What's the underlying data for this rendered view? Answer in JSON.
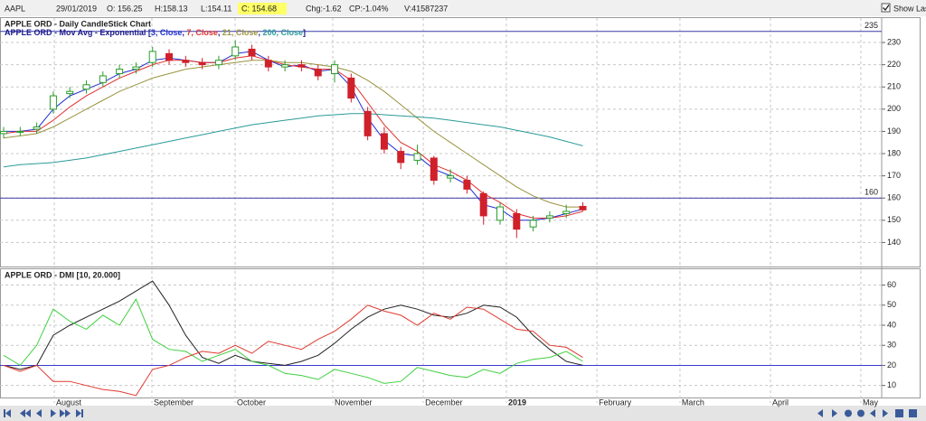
{
  "toolbar": {
    "symbol": "AAPL",
    "date": "29/01/2019",
    "open": "O: 156.25",
    "high": "H:158.13",
    "low": "L:154.11",
    "close": "C: 154.68",
    "change": "Chg:-1.62",
    "change_pct": "CP:-1.04%",
    "volume": "V:41587237",
    "show_last": "Show Last"
  },
  "chart_data": [
    {
      "type": "candlestick",
      "title": "APPLE ORD - Daily CandleStick Chart",
      "legend": {
        "prefix": "APPLE ORD - Mov Avg - Exponential [",
        "separator": ", ",
        "suffix": "]"
      },
      "x": [
        0,
        1,
        2,
        3,
        4,
        5,
        6,
        7,
        8,
        9,
        10,
        11,
        12,
        13,
        14,
        15,
        16,
        17,
        18,
        19,
        20,
        21,
        22,
        23,
        24,
        25,
        26,
        27,
        28,
        29,
        30,
        31,
        32,
        33,
        34,
        35
      ],
      "open": [
        189,
        190,
        191,
        200,
        207,
        209,
        212,
        216,
        218,
        221,
        225,
        222,
        221,
        220,
        224,
        227,
        222,
        219,
        220,
        218,
        216,
        214,
        199,
        189,
        181,
        177,
        178,
        169,
        168,
        162,
        150,
        153,
        147,
        151,
        153,
        156.25
      ],
      "high": [
        192,
        192,
        194,
        208,
        210,
        213,
        217,
        220,
        221,
        228,
        227,
        224,
        223,
        224,
        231,
        229,
        224,
        222,
        222,
        220,
        222,
        216,
        201,
        192,
        183,
        184,
        179,
        173,
        170,
        163,
        158,
        155,
        152,
        154,
        157,
        158.13
      ],
      "low": [
        187,
        188,
        189,
        198,
        205,
        207,
        210,
        214,
        216,
        219,
        220,
        219,
        218,
        218,
        222,
        222,
        217,
        217,
        217,
        213,
        212,
        203,
        186,
        180,
        173,
        175,
        166,
        167,
        162,
        148,
        148,
        142,
        145,
        149,
        151,
        154.11
      ],
      "close": [
        190,
        190,
        192,
        206,
        208,
        211,
        215,
        218,
        219,
        226,
        222,
        221,
        220,
        222,
        228,
        224,
        219,
        220,
        219,
        215,
        220,
        205,
        188,
        182,
        176,
        180,
        168,
        170,
        164,
        152,
        156,
        146,
        150,
        152,
        154,
        154.68
      ],
      "up_color": "#2a9d2a",
      "down_color": "#d0202a",
      "series": [
        {
          "name": "3, Close",
          "color": "#2030d0",
          "values": [
            190,
            190,
            191,
            200,
            206,
            209,
            212,
            216,
            218,
            222,
            223,
            222,
            221,
            221,
            225,
            226,
            222,
            219,
            220,
            217,
            218,
            210,
            196,
            186,
            180,
            179,
            173,
            170,
            166,
            157,
            155,
            150,
            150,
            151,
            153,
            155
          ]
        },
        {
          "name": "7, Close",
          "color": "#e03030",
          "values": [
            189,
            190,
            190,
            195,
            201,
            206,
            210,
            214,
            217,
            220,
            222,
            222,
            221,
            221,
            223,
            224,
            222,
            220,
            219,
            218,
            218,
            213,
            203,
            193,
            185,
            181,
            175,
            172,
            168,
            162,
            158,
            153,
            151,
            151,
            152,
            154
          ]
        },
        {
          "name": "21, Close",
          "color": "#9a9440",
          "values": [
            187,
            188,
            189,
            192,
            196,
            200,
            204,
            208,
            211,
            214,
            216,
            218,
            219,
            220,
            221,
            222,
            222,
            221,
            221,
            220,
            219,
            217,
            213,
            208,
            202,
            196,
            190,
            185,
            180,
            175,
            170,
            165,
            161,
            158,
            156,
            156
          ]
        },
        {
          "name": "200, Close",
          "color": "#2a9a9a",
          "values": [
            174,
            175,
            175.5,
            176,
            177,
            178,
            179.5,
            181,
            182.5,
            184,
            185.5,
            187,
            188.5,
            190,
            191.5,
            193,
            194,
            195,
            196,
            197,
            197.5,
            198,
            198,
            197.5,
            197,
            196.5,
            196,
            195,
            194,
            193,
            192,
            190.5,
            189,
            187.5,
            185.5,
            183.5
          ]
        }
      ],
      "xlim": [
        -0.22,
        53.06
      ],
      "ylim": [
        130,
        241
      ],
      "yticks": [
        140,
        150,
        160,
        170,
        180,
        190,
        200,
        210,
        220,
        230
      ],
      "grid": true,
      "hlines": [
        235,
        160
      ],
      "hline_color": "#3a3aa8"
    },
    {
      "type": "line",
      "title": "APPLE ORD - DMI [10, 20.000]",
      "x": [
        0,
        1,
        2,
        3,
        4,
        5,
        6,
        7,
        8,
        9,
        10,
        11,
        12,
        13,
        14,
        15,
        16,
        17,
        18,
        19,
        20,
        21,
        22,
        23,
        24,
        25,
        26,
        27,
        28,
        29,
        30,
        31,
        32,
        33,
        34,
        35
      ],
      "series": [
        {
          "color": "#222222",
          "values": [
            20,
            18,
            20,
            35,
            40,
            44,
            48,
            52,
            57,
            62,
            50,
            35,
            24,
            21,
            25,
            22,
            21,
            20,
            22,
            25,
            31,
            38,
            44,
            48,
            50,
            48,
            45,
            44,
            46,
            50,
            49,
            44,
            35,
            28,
            22,
            20
          ]
        },
        {
          "color": "#40d040",
          "values": [
            25,
            20,
            30,
            48,
            42,
            38,
            45,
            40,
            53,
            33,
            28,
            27,
            22,
            25,
            28,
            22,
            20,
            16,
            15,
            13,
            18,
            16,
            14,
            11,
            12,
            19,
            17,
            15,
            14,
            18,
            16,
            21,
            23,
            24,
            27,
            22
          ]
        },
        {
          "color": "#e03a30",
          "values": [
            20,
            17,
            20,
            12,
            12,
            10,
            8,
            7,
            5,
            18,
            20,
            24,
            27,
            26,
            30,
            26,
            32,
            30,
            28,
            33,
            37,
            43,
            50,
            47,
            45,
            40,
            46,
            43,
            49,
            48,
            43,
            38,
            37,
            30,
            29,
            24
          ]
        }
      ],
      "xlim": [
        -0.22,
        53.06
      ],
      "ylim": [
        4,
        67
      ],
      "yticks": [
        10,
        20,
        30,
        40,
        50,
        60
      ],
      "grid": true,
      "hlines": [
        20
      ],
      "hline_color": "#3a3ad0",
      "xticks": [
        {
          "value": 3.06,
          "label": "August"
        },
        {
          "value": 8.96,
          "label": "September"
        },
        {
          "value": 13.99,
          "label": "October"
        },
        {
          "value": 19.89,
          "label": "November"
        },
        {
          "value": 25.36,
          "label": "December"
        },
        {
          "value": 30.38,
          "label": "2019"
        },
        {
          "value": 35.85,
          "label": "February"
        },
        {
          "value": 40.87,
          "label": "March"
        },
        {
          "value": 46.34,
          "label": "April"
        },
        {
          "value": 51.8,
          "label": "May"
        }
      ]
    }
  ]
}
